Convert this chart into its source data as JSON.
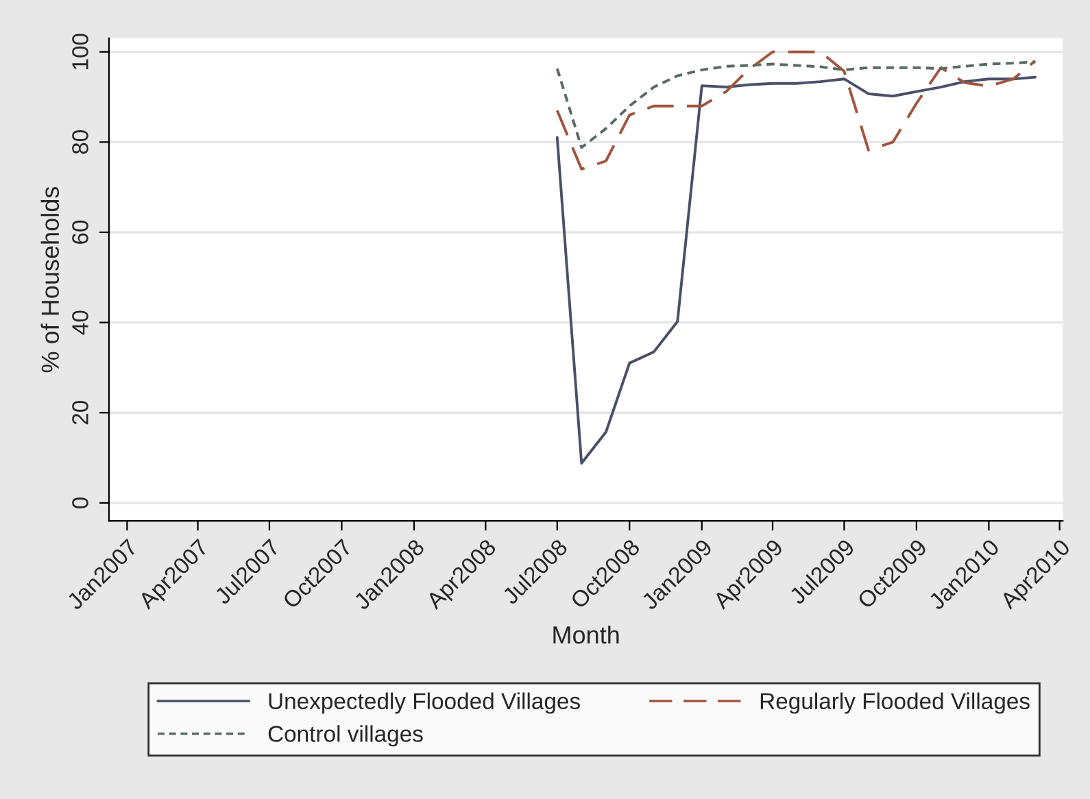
{
  "chart_data": {
    "type": "line",
    "xlabel": "Month",
    "ylabel": "% of Households",
    "x": [
      "2008-07",
      "2008-08",
      "2008-09",
      "2008-10",
      "2008-11",
      "2008-12",
      "2009-01",
      "2009-02",
      "2009-03",
      "2009-04",
      "2009-05",
      "2009-06",
      "2009-07",
      "2009-08",
      "2009-09",
      "2009-10",
      "2009-11",
      "2009-12",
      "2010-01",
      "2010-02",
      "2010-03"
    ],
    "series": [
      {
        "name": "Unexpectedly Flooded Villages",
        "color": "#4a5068",
        "line_style": "solid",
        "values": [
          81,
          8.8,
          15.7,
          31,
          33.5,
          40.2,
          92.5,
          92.2,
          92.7,
          93,
          93,
          93.4,
          94,
          90.7,
          90.2,
          91.2,
          92.2,
          93.4,
          94,
          94,
          94.4
        ]
      },
      {
        "name": "Regularly Flooded Villages",
        "color": "#a0553e",
        "line_style": "dashed",
        "values": [
          87,
          74,
          75.8,
          86,
          88,
          88,
          88,
          91.2,
          96,
          100,
          100,
          100,
          95.7,
          78.2,
          80,
          88.6,
          96.5,
          93.2,
          92.4,
          94,
          98
        ]
      },
      {
        "name": "Control villages",
        "color": "#5a6a60",
        "line_style": "dotted",
        "values": [
          96.3,
          78.8,
          83,
          88,
          92.2,
          94.7,
          96,
          96.8,
          97,
          97.3,
          97,
          96.7,
          96,
          96.5,
          96.5,
          96.5,
          96.3,
          96.8,
          97.3,
          97.5,
          97.8
        ]
      }
    ],
    "xlim": [
      "2006-12-09",
      "2010-04-05"
    ],
    "xticks": [
      {
        "value": "2007-01",
        "label": "Jan2007"
      },
      {
        "value": "2007-04",
        "label": "Apr2007"
      },
      {
        "value": "2007-07",
        "label": "Jul2007"
      },
      {
        "value": "2007-10",
        "label": "Oct2007"
      },
      {
        "value": "2008-01",
        "label": "Jan2008"
      },
      {
        "value": "2008-04",
        "label": "Apr2008"
      },
      {
        "value": "2008-07",
        "label": "Jul2008"
      },
      {
        "value": "2008-10",
        "label": "Oct2008"
      },
      {
        "value": "2009-01",
        "label": "Jan2009"
      },
      {
        "value": "2009-04",
        "label": "Apr2009"
      },
      {
        "value": "2009-07",
        "label": "Jul2009"
      },
      {
        "value": "2009-10",
        "label": "Oct2009"
      },
      {
        "value": "2010-01",
        "label": "Jan2010"
      },
      {
        "value": "2010-04",
        "label": "Apr2010"
      }
    ],
    "ylim": [
      -4,
      103
    ],
    "yticks": [
      0,
      20,
      40,
      60,
      80,
      100
    ],
    "grid": "y",
    "legend": "bottom",
    "marker": "none"
  }
}
